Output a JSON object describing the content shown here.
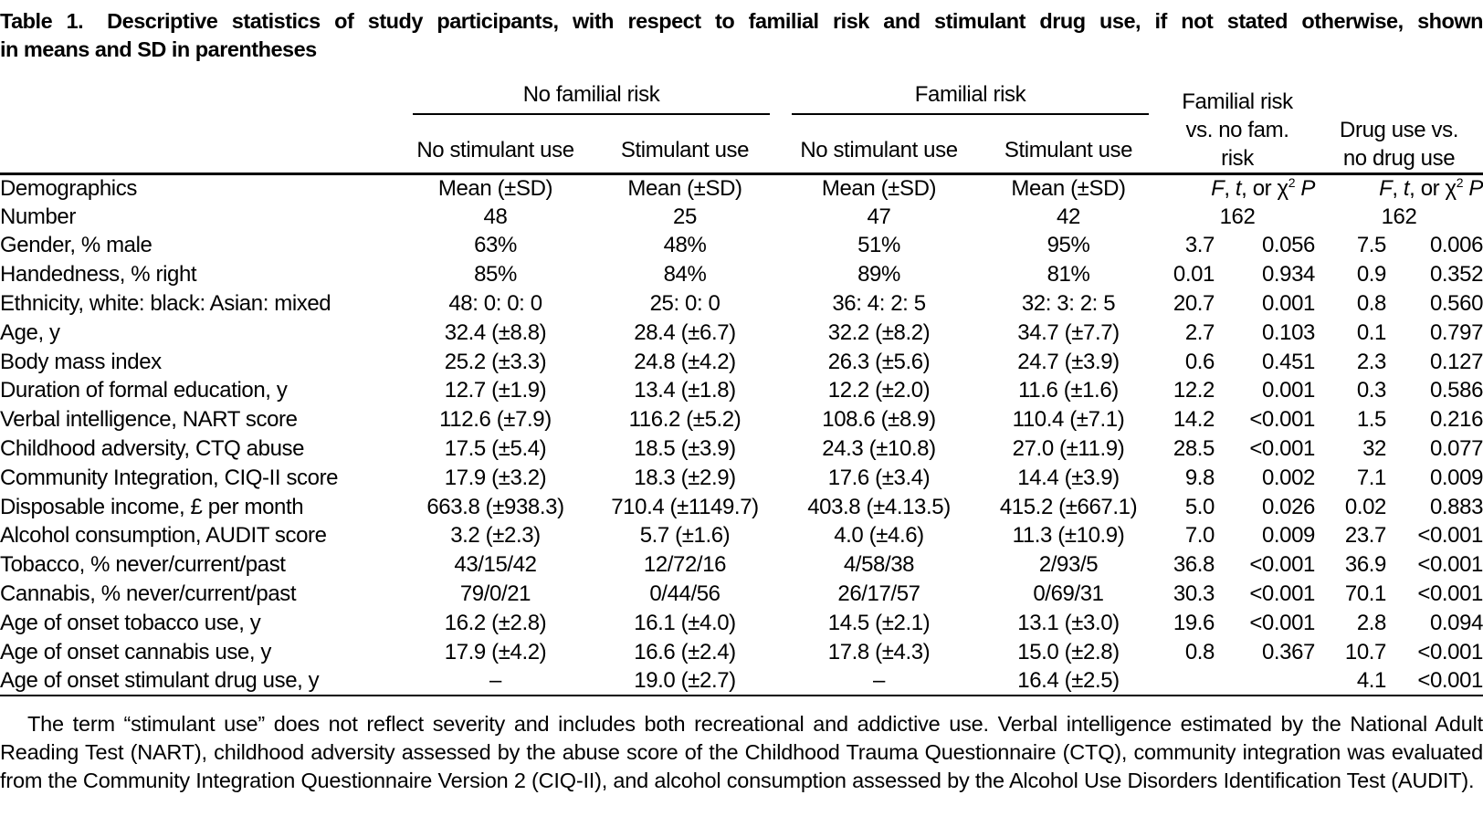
{
  "title": {
    "label": "Table 1.",
    "line1": "Descriptive statistics of study participants, with respect to familial risk and stimulant drug use, if not stated otherwise, shown",
    "line2": "in means and SD in parentheses"
  },
  "header": {
    "group_no_familial": "No familial risk",
    "group_familial": "Familial risk",
    "vs_fam_l1": "Familial risk",
    "vs_fam_l2": "vs. no fam.",
    "vs_fam_l3": "risk",
    "vs_drug_l1": "Drug use vs.",
    "vs_drug_l2": "no drug use",
    "sub1": "No stimulant use",
    "sub2": "Stimulant use",
    "sub3": "No stimulant use",
    "sub4": "Stimulant use",
    "stat": {
      "f": "F",
      "sep1": ", ",
      "t": "t",
      "sep2": ", or ",
      "chi": "χ",
      "sup": "2",
      "p": " P"
    }
  },
  "table": {
    "demographics_row": {
      "label": "Demographics",
      "mean1": "Mean (±SD)",
      "mean2": "Mean (±SD)",
      "mean3": "Mean (±SD)",
      "mean4": "Mean (±SD)"
    },
    "number_row": {
      "label": "Number",
      "v1": "48",
      "v2": "25",
      "v3": "47",
      "v4": "42",
      "n1": "162",
      "n2": "162"
    },
    "rows": [
      [
        "Gender, % male",
        "63%",
        "48%",
        "51%",
        "95%",
        "3.7",
        "0.056",
        "7.5",
        "0.006"
      ],
      [
        "Handedness, % right",
        "85%",
        "84%",
        "89%",
        "81%",
        "0.01",
        "0.934",
        "0.9",
        "0.352"
      ],
      [
        "Ethnicity, white: black: Asian: mixed",
        "48: 0: 0: 0",
        "25: 0: 0",
        "36: 4: 2: 5",
        "32: 3: 2: 5",
        "20.7",
        "0.001",
        "0.8",
        "0.560"
      ],
      [
        "Age, y",
        "32.4 (±8.8)",
        "28.4 (±6.7)",
        "32.2 (±8.2)",
        "34.7 (±7.7)",
        "2.7",
        "0.103",
        "0.1",
        "0.797"
      ],
      [
        "Body mass index",
        "25.2 (±3.3)",
        "24.8 (±4.2)",
        "26.3 (±5.6)",
        "24.7 (±3.9)",
        "0.6",
        "0.451",
        "2.3",
        "0.127"
      ],
      [
        "Duration of formal education, y",
        "12.7 (±1.9)",
        "13.4 (±1.8)",
        "12.2 (±2.0)",
        "11.6 (±1.6)",
        "12.2",
        "0.001",
        "0.3",
        "0.586"
      ],
      [
        "Verbal intelligence, NART score",
        "112.6 (±7.9)",
        "116.2 (±5.2)",
        "108.6 (±8.9)",
        "110.4 (±7.1)",
        "14.2",
        "<0.001",
        "1.5",
        "0.216"
      ],
      [
        "Childhood adversity, CTQ abuse",
        "17.5 (±5.4)",
        "18.5 (±3.9)",
        "24.3 (±10.8)",
        "27.0 (±11.9)",
        "28.5",
        "<0.001",
        "32",
        "0.077"
      ],
      [
        "Community Integration, CIQ-II score",
        "17.9 (±3.2)",
        "18.3 (±2.9)",
        "17.6 (±3.4)",
        "14.4 (±3.9)",
        "9.8",
        "0.002",
        "7.1",
        "0.009"
      ],
      [
        "Disposable income, £ per month",
        "663.8 (±938.3)",
        "710.4 (±1149.7)",
        "403.8 (±4.13.5)",
        "415.2 (±667.1)",
        "5.0",
        "0.026",
        "0.02",
        "0.883"
      ],
      [
        "Alcohol consumption, AUDIT score",
        "3.2 (±2.3)",
        "5.7 (±1.6)",
        "4.0 (±4.6)",
        "11.3 (±10.9)",
        "7.0",
        "0.009",
        "23.7",
        "<0.001"
      ],
      [
        "Tobacco, % never/current/past",
        "43/15/42",
        "12/72/16",
        "4/58/38",
        "2/93/5",
        "36.8",
        "<0.001",
        "36.9",
        "<0.001"
      ],
      [
        "Cannabis, % never/current/past",
        "79/0/21",
        "0/44/56",
        "26/17/57",
        "0/69/31",
        "30.3",
        "<0.001",
        "70.1",
        "<0.001"
      ],
      [
        "Age of onset tobacco use, y",
        "16.2 (±2.8)",
        "16.1 (±4.0)",
        "14.5 (±2.1)",
        "13.1 (±3.0)",
        "19.6",
        "<0.001",
        "2.8",
        "0.094"
      ],
      [
        "Age of onset cannabis use, y",
        "17.9 (±4.2)",
        "16.6 (±2.4)",
        "17.8 (±4.3)",
        "15.0 (±2.8)",
        "0.8",
        "0.367",
        "10.7",
        "<0.001"
      ],
      [
        "Age of onset stimulant drug use, y",
        "–",
        "19.0 (±2.7)",
        "–",
        "16.4 (±2.5)",
        "",
        "",
        "4.1",
        "<0.001"
      ]
    ]
  },
  "footnote": "The term “stimulant use” does not reflect severity and includes both recreational and addictive use. Verbal intelligence estimated by the National Adult Reading Test (NART), childhood adversity assessed by the abuse score of the Childhood Trauma Questionnaire (CTQ), community integration was evaluated from the Community Integration Questionnaire Version 2 (CIQ-II), and alcohol consumption assessed by the Alcohol Use Disorders Identification Test (AUDIT)."
}
